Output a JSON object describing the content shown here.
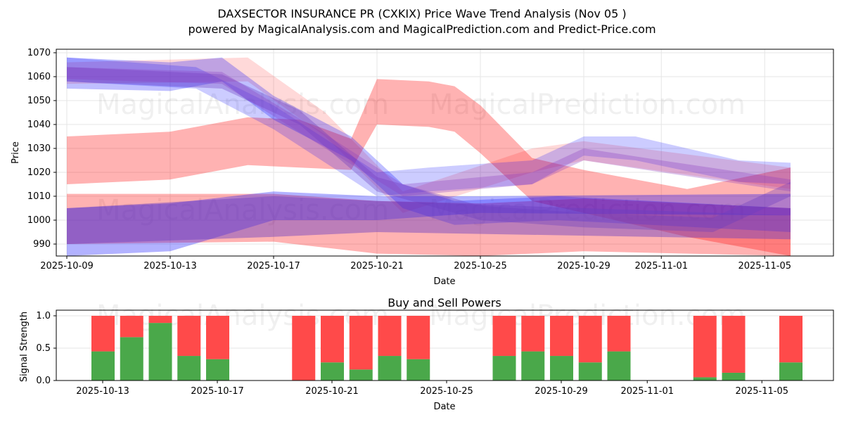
{
  "title": "DAXSECTOR INSURANCE PR (CXKIX) Price Wave Trend Analysis (Nov 05 )",
  "subtitle": "powered by MagicalAnalysis.com and MagicalPrediction.com and Predict-Price.com",
  "watermarks": [
    "MagicalAnalysis.com",
    "MagicalPrediction.com"
  ],
  "chart_data": [
    {
      "type": "area",
      "title": "",
      "xlabel": "Date",
      "ylabel": "Price",
      "ylim": [
        985,
        1071.5
      ],
      "xlim": [
        "2025-10-08",
        "2025-11-07"
      ],
      "x_ticks": [
        "2025-10-09",
        "2025-10-13",
        "2025-10-17",
        "2025-10-21",
        "2025-10-25",
        "2025-10-29",
        "2025-11-01",
        "2025-11-05"
      ],
      "y_ticks": [
        990,
        1000,
        1010,
        1020,
        1030,
        1040,
        1050,
        1060,
        1070
      ],
      "grid": true,
      "bands": [
        {
          "color": "#ff0000",
          "opacity": 0.3,
          "points": [
            [
              "2025-10-09",
              1015,
              1035
            ],
            [
              "2025-10-13",
              1017,
              1037
            ],
            [
              "2025-10-16",
              1023,
              1043
            ],
            [
              "2025-10-18",
              1022,
              1042
            ],
            [
              "2025-10-20",
              1021,
              1034
            ],
            [
              "2025-10-21",
              1040,
              1059
            ],
            [
              "2025-10-23",
              1039,
              1058
            ],
            [
              "2025-10-24",
              1037,
              1056
            ],
            [
              "2025-10-25",
              1028,
              1048
            ],
            [
              "2025-10-27",
              1008,
              1026
            ],
            [
              "2025-10-29",
              1003,
              1021
            ],
            [
              "2025-11-02",
              993,
              1013
            ],
            [
              "2025-11-06",
              985,
              1022
            ]
          ]
        },
        {
          "color": "#ff0000",
          "opacity": 0.3,
          "points": [
            [
              "2025-10-09",
              990,
              1011
            ],
            [
              "2025-10-17",
              991,
              1011
            ],
            [
              "2025-10-21",
              986,
              1008
            ],
            [
              "2025-10-25",
              985,
              1007
            ],
            [
              "2025-10-29",
              987,
              1009
            ],
            [
              "2025-11-06",
              985,
              1005
            ]
          ]
        },
        {
          "color": "#ff0000",
          "opacity": 0.15,
          "points": [
            [
              "2025-10-09",
              1057,
              1066
            ],
            [
              "2025-10-16",
              1058,
              1068
            ],
            [
              "2025-10-19",
              1035,
              1045
            ],
            [
              "2025-10-22",
              1003,
              1012
            ],
            [
              "2025-10-27",
              1020,
              1030
            ],
            [
              "2025-10-29",
              1025,
              1033
            ],
            [
              "2025-11-06",
              1013,
              1022
            ]
          ]
        },
        {
          "color": "#0000ff",
          "opacity": 0.25,
          "points": [
            [
              "2025-10-09",
              1055,
              1068
            ],
            [
              "2025-10-13",
              1054,
              1066
            ],
            [
              "2025-10-15",
              1058,
              1068
            ],
            [
              "2025-10-17",
              1042,
              1052
            ],
            [
              "2025-10-20",
              1025,
              1035
            ],
            [
              "2025-10-22",
              1005,
              1015
            ],
            [
              "2025-10-24",
              998,
              1008
            ],
            [
              "2025-10-28",
              1000,
              1010
            ],
            [
              "2025-11-06",
              995,
              1005
            ]
          ]
        },
        {
          "color": "#0000ff",
          "opacity": 0.2,
          "points": [
            [
              "2025-10-09",
              1058,
              1068
            ],
            [
              "2025-10-14",
              1055,
              1064
            ],
            [
              "2025-10-17",
              1038,
              1048
            ],
            [
              "2025-10-21",
              1010,
              1020
            ],
            [
              "2025-10-23",
              1012,
              1022
            ],
            [
              "2025-10-27",
              1015,
              1025
            ],
            [
              "2025-10-29",
              1027,
              1035
            ],
            [
              "2025-10-31",
              1025,
              1035
            ],
            [
              "2025-11-04",
              1016,
              1025
            ],
            [
              "2025-11-06",
              1015,
              1024
            ]
          ]
        },
        {
          "color": "#0000ff",
          "opacity": 0.3,
          "points": [
            [
              "2025-10-09",
              985,
              1005
            ],
            [
              "2025-10-13",
              987,
              1007
            ],
            [
              "2025-10-17",
              1000,
              1012
            ],
            [
              "2025-10-21",
              1000,
              1010
            ],
            [
              "2025-10-25",
              1003,
              1010
            ],
            [
              "2025-11-06",
              1002,
              1011
            ]
          ]
        },
        {
          "color": "#6a3dc0",
          "opacity": 0.45,
          "points": [
            [
              "2025-10-09",
              990,
              1005
            ],
            [
              "2025-10-17",
              993,
              1010
            ],
            [
              "2025-10-21",
              995,
              1008
            ],
            [
              "2025-11-06",
              992,
              1002
            ]
          ]
        },
        {
          "color": "#6a3dc0",
          "opacity": 0.35,
          "points": [
            [
              "2025-10-09",
              1058,
              1064
            ],
            [
              "2025-10-15",
              1055,
              1061
            ],
            [
              "2025-10-18",
              1040,
              1046
            ],
            [
              "2025-10-21",
              1012,
              1018
            ],
            [
              "2025-10-25",
              1000,
              1006
            ],
            [
              "2025-10-29",
              997,
              1003
            ],
            [
              "2025-11-03",
              995,
              1001
            ],
            [
              "2025-11-06",
              1010,
              1016
            ]
          ]
        },
        {
          "color": "#8a3dc0",
          "opacity": 0.3,
          "points": [
            [
              "2025-10-09",
              1059,
              1064
            ],
            [
              "2025-10-15",
              1057,
              1062
            ],
            [
              "2025-10-19",
              1030,
              1036
            ],
            [
              "2025-10-22",
              1010,
              1015
            ],
            [
              "2025-10-27",
              1015,
              1020
            ],
            [
              "2025-10-29",
              1025,
              1030
            ],
            [
              "2025-11-01",
              1020,
              1025
            ],
            [
              "2025-11-06",
              1012,
              1017
            ]
          ]
        }
      ]
    },
    {
      "type": "bar",
      "title": "Buy and Sell Powers",
      "xlabel": "Date",
      "ylabel": "Signal Strength",
      "ylim": [
        0,
        1.08
      ],
      "x_ticks": [
        "2025-10-13",
        "2025-10-17",
        "2025-10-21",
        "2025-10-25",
        "2025-10-29",
        "2025-11-01",
        "2025-11-05"
      ],
      "y_ticks": [
        "0.0",
        "0.5",
        "1.0"
      ],
      "categories": [
        "2025-10-13",
        "2025-10-14",
        "2025-10-15",
        "2025-10-16",
        "2025-10-17",
        "2025-10-20",
        "2025-10-21",
        "2025-10-22",
        "2025-10-23",
        "2025-10-24",
        "2025-10-27",
        "2025-10-28",
        "2025-10-29",
        "2025-10-30",
        "2025-10-31",
        "2025-11-03",
        "2025-11-04",
        "2025-11-06"
      ],
      "series": [
        {
          "name": "Buy",
          "color": "#4aa84a",
          "values": [
            0.45,
            0.67,
            0.89,
            0.38,
            0.33,
            0.0,
            0.28,
            0.17,
            0.38,
            0.33,
            0.38,
            0.45,
            0.38,
            0.28,
            0.45,
            0.05,
            0.12,
            0.28
          ]
        },
        {
          "name": "Sell",
          "color": "#ff4a4a",
          "values": [
            0.55,
            0.33,
            0.11,
            0.62,
            0.67,
            1.0,
            0.72,
            0.83,
            0.62,
            0.67,
            0.62,
            0.55,
            0.62,
            0.72,
            0.55,
            0.95,
            0.88,
            0.72
          ]
        }
      ]
    }
  ]
}
